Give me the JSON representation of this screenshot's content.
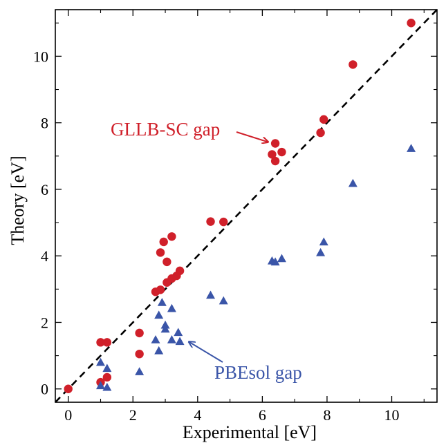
{
  "chart_data": {
    "type": "scatter",
    "title": "",
    "xlabel": "Experimental [eV]",
    "ylabel": "Theory [eV]",
    "xlim": [
      -0.4,
      11.4
    ],
    "ylim": [
      -0.4,
      11.4
    ],
    "xticks": [
      0,
      2,
      4,
      6,
      8,
      10
    ],
    "yticks": [
      0,
      2,
      4,
      6,
      8,
      10
    ],
    "xtick_labels": [
      "0",
      "2",
      "4",
      "6",
      "8",
      "10"
    ],
    "ytick_labels": [
      "0",
      "2",
      "4",
      "6",
      "8",
      "10"
    ],
    "grid": false,
    "reference_line": {
      "style": "dashed",
      "x": [
        -0.4,
        11.4
      ],
      "y": [
        -0.4,
        11.4
      ],
      "color": "#000000"
    },
    "series": [
      {
        "marker": "circle",
        "color": "#d0202a",
        "points": [
          [
            0.0,
            0.0
          ],
          [
            1.0,
            0.2
          ],
          [
            1.0,
            1.4
          ],
          [
            1.2,
            1.4
          ],
          [
            1.2,
            0.35
          ],
          [
            2.2,
            1.68
          ],
          [
            2.2,
            1.05
          ],
          [
            2.7,
            2.92
          ],
          [
            2.85,
            4.1
          ],
          [
            2.85,
            2.98
          ],
          [
            2.95,
            4.42
          ],
          [
            3.05,
            3.82
          ],
          [
            3.05,
            3.2
          ],
          [
            3.2,
            3.32
          ],
          [
            3.2,
            4.58
          ],
          [
            3.35,
            3.4
          ],
          [
            3.45,
            3.55
          ],
          [
            4.4,
            5.03
          ],
          [
            4.8,
            5.02
          ],
          [
            6.3,
            7.05
          ],
          [
            6.4,
            6.85
          ],
          [
            6.4,
            7.38
          ],
          [
            6.6,
            7.12
          ],
          [
            7.8,
            7.7
          ],
          [
            7.9,
            8.1
          ],
          [
            8.8,
            9.75
          ],
          [
            10.6,
            11.0
          ]
        ]
      },
      {
        "marker": "triangle",
        "color": "#3a55a8",
        "points": [
          [
            1.0,
            0.8
          ],
          [
            1.0,
            0.1
          ],
          [
            1.2,
            0.62
          ],
          [
            1.2,
            0.05
          ],
          [
            2.2,
            0.52
          ],
          [
            2.7,
            1.48
          ],
          [
            2.8,
            2.22
          ],
          [
            2.8,
            1.15
          ],
          [
            2.9,
            2.6
          ],
          [
            3.0,
            1.92
          ],
          [
            3.0,
            1.8
          ],
          [
            3.2,
            2.42
          ],
          [
            3.2,
            1.48
          ],
          [
            3.4,
            1.7
          ],
          [
            3.45,
            1.43
          ],
          [
            4.4,
            2.82
          ],
          [
            4.8,
            2.65
          ],
          [
            6.3,
            3.85
          ],
          [
            6.4,
            3.82
          ],
          [
            6.6,
            3.92
          ],
          [
            7.8,
            4.1
          ],
          [
            7.9,
            4.42
          ],
          [
            8.8,
            6.18
          ],
          [
            10.6,
            7.23
          ]
        ]
      }
    ],
    "annotations": [
      {
        "text": "GLLB-SC gap",
        "color": "#d0202a",
        "arrow_to": [
          6.35,
          7.38
        ]
      },
      {
        "text": "PBEsol gap",
        "color": "#3a55a8",
        "arrow_to": [
          3.6,
          1.5
        ]
      }
    ]
  }
}
